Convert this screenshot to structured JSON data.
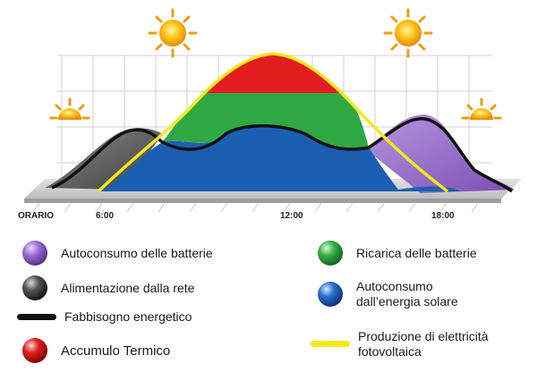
{
  "colors": {
    "battery_self_consumption": "#7b4fb3",
    "grid_supply": "#3a3a3a",
    "energy_demand": "#111111",
    "thermal_storage": "#e21d1d",
    "battery_charging": "#2fa843",
    "solar_self_consumption": "#1b5fb3",
    "pv_production": "#f4e81c"
  },
  "icons": [
    "sun-icon",
    "sun-rising-icon",
    "sun-setting-icon"
  ],
  "axis": {
    "label": "ORARIO",
    "ticks": [
      "6:00",
      "12:00",
      "18:00"
    ]
  },
  "legend": {
    "battery_self_consumption": "Autoconsumo delle batterie",
    "grid_supply": "Alimentazione dalla rete",
    "energy_demand": "Fabbisogno energetico",
    "thermal_storage": "Accumulo Termico",
    "battery_charging": "Ricarica delle batterie",
    "solar_self_consumption_line1": "Autoconsumo",
    "solar_self_consumption_line2": "dall’energia solare",
    "pv_production_line1": "Produzione di elettricità",
    "pv_production_line2": "fotovoltaica"
  }
}
